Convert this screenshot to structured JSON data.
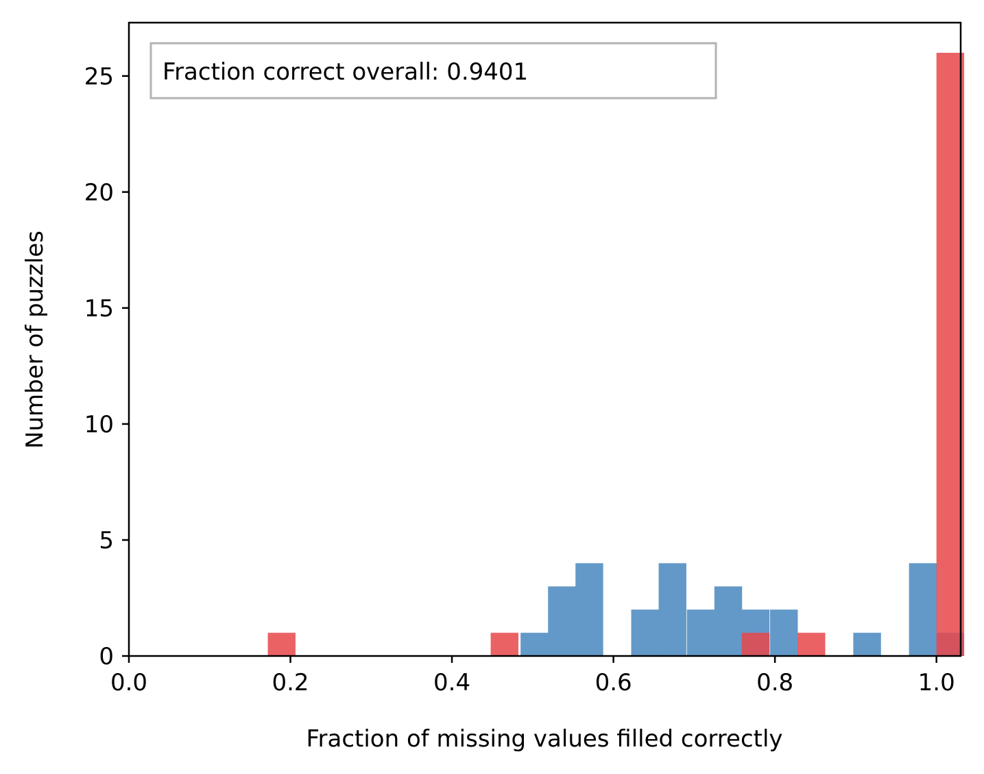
{
  "chart_data": {
    "type": "bar",
    "title": "",
    "xlabel": "Fraction of missing values filled correctly",
    "ylabel": "Number of puzzles",
    "xlim": [
      0.0,
      1.03
    ],
    "ylim": [
      0,
      27.3
    ],
    "grid": false,
    "bin_width": 0.0343,
    "xticks": [
      0.0,
      0.2,
      0.4,
      0.6,
      0.8,
      1.0
    ],
    "xtick_labels": [
      "0.0",
      "0.2",
      "0.4",
      "0.6",
      "0.8",
      "1.0"
    ],
    "yticks": [
      0,
      5,
      10,
      15,
      20,
      25
    ],
    "ytick_labels": [
      "0",
      "5",
      "10",
      "15",
      "20",
      "25"
    ],
    "annotation": "Fraction correct overall: 0.9401",
    "colors": {
      "blue": "#6399c8",
      "red": "#e8474a"
    },
    "series": [
      {
        "color": "#6399c8",
        "opacity": 1.0,
        "bins": [
          {
            "x": 0.485,
            "count": 1
          },
          {
            "x": 0.519,
            "count": 3
          },
          {
            "x": 0.553,
            "count": 4
          },
          {
            "x": 0.622,
            "count": 2
          },
          {
            "x": 0.656,
            "count": 4
          },
          {
            "x": 0.691,
            "count": 2
          },
          {
            "x": 0.725,
            "count": 3
          },
          {
            "x": 0.759,
            "count": 2
          },
          {
            "x": 0.794,
            "count": 2
          },
          {
            "x": 0.897,
            "count": 1
          },
          {
            "x": 0.966,
            "count": 4
          },
          {
            "x": 1.0,
            "count": 1
          }
        ]
      },
      {
        "color": "#e8474a",
        "opacity": 0.85,
        "bins": [
          {
            "x": 0.172,
            "count": 1
          },
          {
            "x": 0.448,
            "count": 1
          },
          {
            "x": 0.759,
            "count": 1
          },
          {
            "x": 0.828,
            "count": 1
          },
          {
            "x": 1.0,
            "count": 26
          }
        ]
      }
    ]
  }
}
